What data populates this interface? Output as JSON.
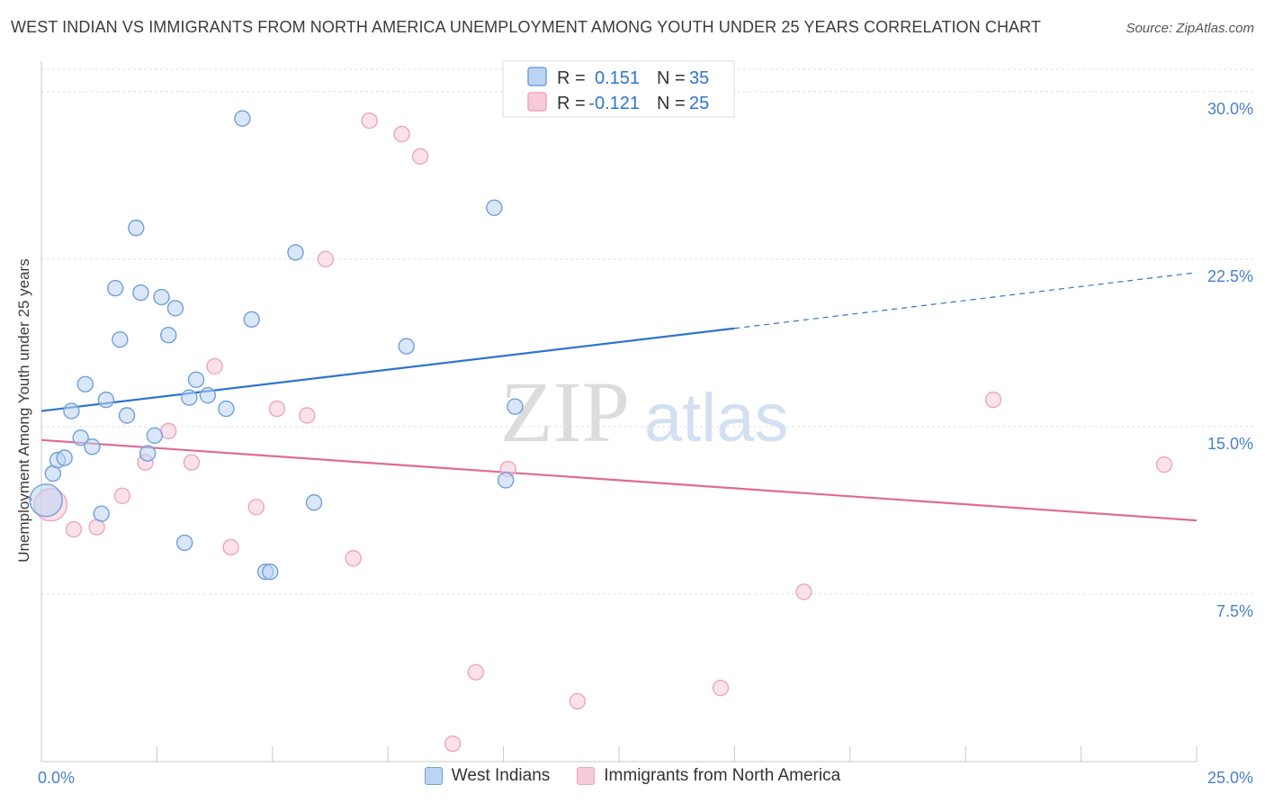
{
  "chart_data": {
    "type": "scatter",
    "title": "WEST INDIAN VS IMMIGRANTS FROM NORTH AMERICA UNEMPLOYMENT AMONG YOUTH UNDER 25 YEARS CORRELATION CHART",
    "source": "Source: ZipAtlas.com",
    "ylabel": "Unemployment Among Youth under 25 years",
    "xlabel": "",
    "xlim": [
      0,
      25
    ],
    "ylim": [
      0,
      31
    ],
    "x_tick_labels": [
      {
        "value": 0,
        "label": "0.0%"
      },
      {
        "value": 25,
        "label": "25.0%"
      }
    ],
    "y_tick_labels": [
      {
        "value": 7.5,
        "label": "7.5%"
      },
      {
        "value": 15,
        "label": "15.0%"
      },
      {
        "value": 22.5,
        "label": "22.5%"
      },
      {
        "value": 30,
        "label": "30.0%"
      }
    ],
    "gridlines_y": [
      7.5,
      15,
      22.5,
      30
    ],
    "watermark": {
      "part1": "ZIP",
      "part2": "atlas"
    },
    "legend": {
      "position": "top-center",
      "entries": [
        {
          "r_label": "R =",
          "r_value": "0.151",
          "n_label": "N =",
          "n_value": "35"
        },
        {
          "r_label": "R =",
          "r_value": "-0.121",
          "n_label": "N =",
          "n_value": "25"
        }
      ]
    },
    "series": [
      {
        "name": "West Indians",
        "color": "#6fa0dc",
        "fill": "#bcd4f2",
        "trend": {
          "x0": 0,
          "y0": 15.7,
          "x1": 15,
          "y1": 19.4,
          "dashed_to_x": 25,
          "dashed_to_y": 21.9,
          "color": "#2f74d0"
        },
        "points": [
          {
            "x": 0.1,
            "y": 11.7,
            "big": true
          },
          {
            "x": 0.25,
            "y": 12.9
          },
          {
            "x": 0.35,
            "y": 13.5
          },
          {
            "x": 0.5,
            "y": 13.6
          },
          {
            "x": 0.65,
            "y": 15.7
          },
          {
            "x": 0.85,
            "y": 14.5
          },
          {
            "x": 0.95,
            "y": 16.9
          },
          {
            "x": 1.1,
            "y": 14.1
          },
          {
            "x": 1.3,
            "y": 11.1
          },
          {
            "x": 1.4,
            "y": 16.2
          },
          {
            "x": 1.6,
            "y": 21.2
          },
          {
            "x": 1.7,
            "y": 18.9
          },
          {
            "x": 1.85,
            "y": 15.5
          },
          {
            "x": 2.05,
            "y": 23.9
          },
          {
            "x": 2.15,
            "y": 21.0
          },
          {
            "x": 2.3,
            "y": 13.8
          },
          {
            "x": 2.45,
            "y": 14.6
          },
          {
            "x": 2.6,
            "y": 20.8
          },
          {
            "x": 2.75,
            "y": 19.1
          },
          {
            "x": 2.9,
            "y": 20.3
          },
          {
            "x": 3.1,
            "y": 9.8
          },
          {
            "x": 3.2,
            "y": 16.3
          },
          {
            "x": 3.35,
            "y": 17.1
          },
          {
            "x": 3.6,
            "y": 16.4
          },
          {
            "x": 4.0,
            "y": 15.8
          },
          {
            "x": 4.35,
            "y": 28.8
          },
          {
            "x": 4.55,
            "y": 19.8
          },
          {
            "x": 4.85,
            "y": 8.5
          },
          {
            "x": 4.95,
            "y": 8.5
          },
          {
            "x": 5.5,
            "y": 22.8
          },
          {
            "x": 5.9,
            "y": 11.6
          },
          {
            "x": 7.9,
            "y": 18.6
          },
          {
            "x": 9.8,
            "y": 24.8
          },
          {
            "x": 10.05,
            "y": 12.6
          },
          {
            "x": 10.25,
            "y": 15.9
          }
        ]
      },
      {
        "name": "Immigrants from North America",
        "color": "#eca6bd",
        "fill": "#f8cbd9",
        "trend": {
          "x0": 0,
          "y0": 14.4,
          "x1": 25,
          "y1": 10.8,
          "color": "#e06a95"
        },
        "points": [
          {
            "x": 0.2,
            "y": 11.5,
            "big": true
          },
          {
            "x": 0.7,
            "y": 10.4
          },
          {
            "x": 1.2,
            "y": 10.5
          },
          {
            "x": 1.75,
            "y": 11.9
          },
          {
            "x": 2.25,
            "y": 13.4
          },
          {
            "x": 2.75,
            "y": 14.8
          },
          {
            "x": 3.25,
            "y": 13.4
          },
          {
            "x": 3.75,
            "y": 17.7
          },
          {
            "x": 4.1,
            "y": 9.6
          },
          {
            "x": 4.65,
            "y": 11.4
          },
          {
            "x": 5.1,
            "y": 15.8
          },
          {
            "x": 5.75,
            "y": 15.5
          },
          {
            "x": 6.15,
            "y": 22.5
          },
          {
            "x": 6.75,
            "y": 9.1
          },
          {
            "x": 7.1,
            "y": 28.7
          },
          {
            "x": 7.8,
            "y": 28.1
          },
          {
            "x": 8.2,
            "y": 27.1
          },
          {
            "x": 8.9,
            "y": 0.8
          },
          {
            "x": 9.4,
            "y": 4.0
          },
          {
            "x": 10.1,
            "y": 13.1
          },
          {
            "x": 11.6,
            "y": 2.7
          },
          {
            "x": 14.7,
            "y": 3.3
          },
          {
            "x": 16.5,
            "y": 7.6
          },
          {
            "x": 20.6,
            "y": 16.2
          },
          {
            "x": 24.3,
            "y": 13.3
          }
        ]
      }
    ]
  }
}
